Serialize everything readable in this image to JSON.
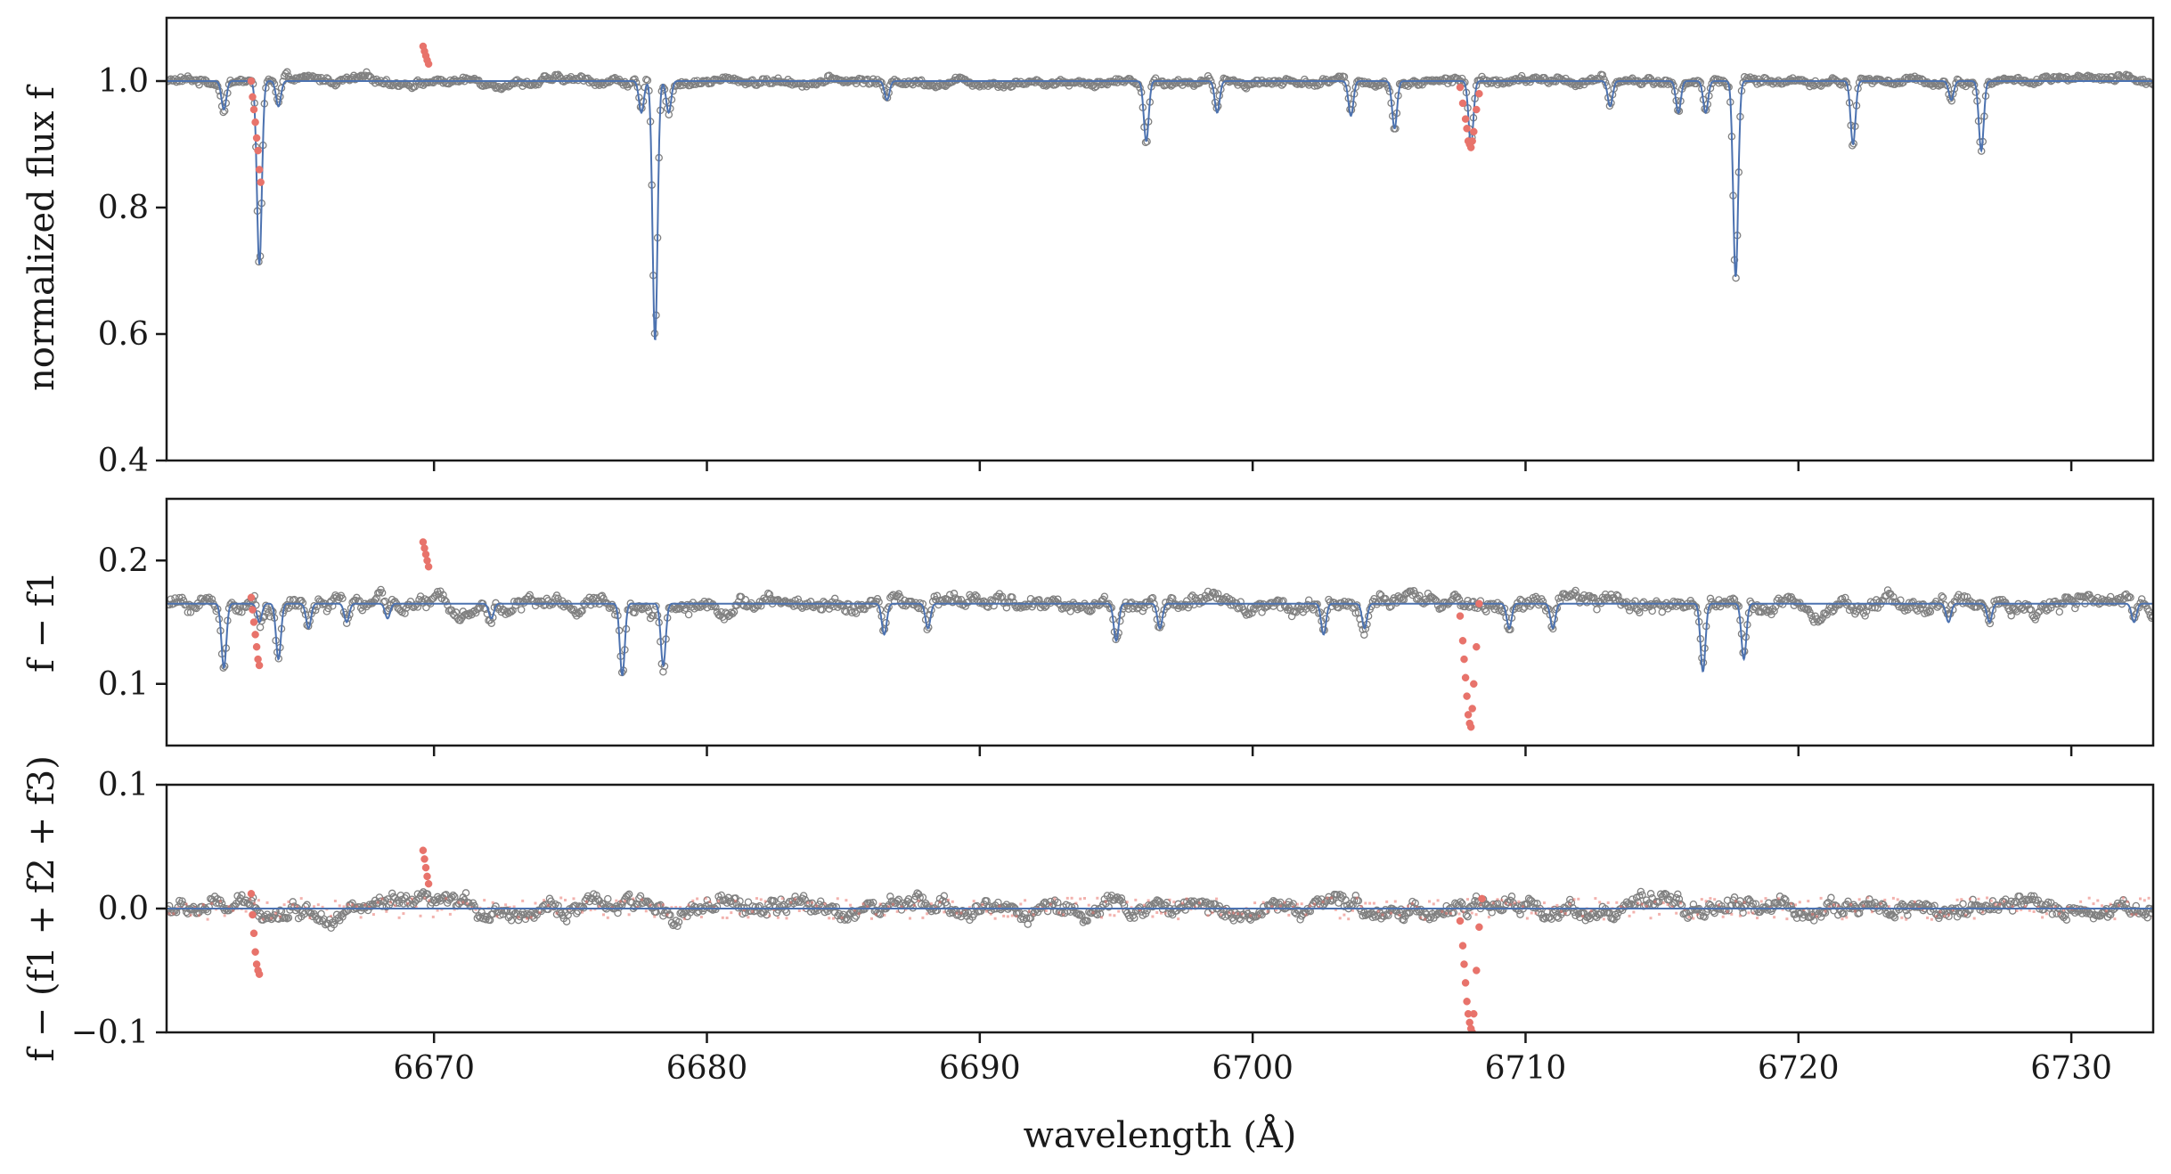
{
  "figure": {
    "xlabel": "wavelength (Å)"
  },
  "colors": {
    "model_line": "#4c72b0",
    "data_points": "#808080",
    "masked_points": "#e8736b",
    "frame": "#1a1a1a"
  },
  "chart_data": [
    {
      "type": "line",
      "panel": "top",
      "ylabel": "normalized flux f",
      "xlim": [
        6660.2,
        6733.0
      ],
      "ylim": [
        0.4,
        1.1
      ],
      "xticks": [
        6670,
        6680,
        6690,
        6700,
        6710,
        6720,
        6730
      ],
      "xtick_labels_shown": false,
      "yticks": [
        0.4,
        0.6,
        0.8,
        1.0
      ],
      "ytick_labels": [
        "0.4",
        "0.6",
        "0.8",
        "1.0"
      ],
      "baseline": 1.0,
      "noise": 0.007,
      "series": [
        {
          "role": "model",
          "style": "line",
          "absorption_lines": [
            {
              "x": 6662.3,
              "depth": 0.045
            },
            {
              "x": 6663.6,
              "depth": 0.29
            },
            {
              "x": 6664.3,
              "depth": 0.04
            },
            {
              "x": 6677.6,
              "depth": 0.05
            },
            {
              "x": 6678.1,
              "depth": 0.41
            },
            {
              "x": 6678.6,
              "depth": 0.05
            },
            {
              "x": 6686.6,
              "depth": 0.03
            },
            {
              "x": 6696.1,
              "depth": 0.095
            },
            {
              "x": 6698.7,
              "depth": 0.05
            },
            {
              "x": 6703.6,
              "depth": 0.055
            },
            {
              "x": 6705.2,
              "depth": 0.075
            },
            {
              "x": 6708.0,
              "depth": 0.1
            },
            {
              "x": 6713.1,
              "depth": 0.04
            },
            {
              "x": 6715.6,
              "depth": 0.05
            },
            {
              "x": 6716.6,
              "depth": 0.05
            },
            {
              "x": 6717.7,
              "depth": 0.31
            },
            {
              "x": 6722.0,
              "depth": 0.1
            },
            {
              "x": 6725.6,
              "depth": 0.03
            },
            {
              "x": 6726.7,
              "depth": 0.11
            }
          ]
        },
        {
          "role": "observed",
          "style": "open-circles"
        },
        {
          "role": "masked",
          "style": "filled-dots",
          "points": [
            [
              6663.3,
              1.0
            ],
            [
              6663.35,
              0.975
            ],
            [
              6663.4,
              0.955
            ],
            [
              6663.45,
              0.935
            ],
            [
              6663.5,
              0.91
            ],
            [
              6663.55,
              0.89
            ],
            [
              6663.6,
              0.86
            ],
            [
              6663.65,
              0.84
            ],
            [
              6669.6,
              1.055
            ],
            [
              6669.65,
              1.047
            ],
            [
              6669.7,
              1.04
            ],
            [
              6669.75,
              1.033
            ],
            [
              6669.8,
              1.027
            ],
            [
              6707.6,
              0.99
            ],
            [
              6707.7,
              0.965
            ],
            [
              6707.8,
              0.94
            ],
            [
              6707.85,
              0.925
            ],
            [
              6707.9,
              0.905
            ],
            [
              6707.95,
              0.9
            ],
            [
              6708.0,
              0.895
            ],
            [
              6708.05,
              0.905
            ],
            [
              6708.1,
              0.92
            ],
            [
              6708.2,
              0.955
            ],
            [
              6708.3,
              0.98
            ]
          ]
        }
      ]
    },
    {
      "type": "line",
      "panel": "middle",
      "ylabel": "f − f1",
      "xlim": [
        6660.2,
        6733.0
      ],
      "ylim": [
        0.05,
        0.25
      ],
      "xticks": [
        6670,
        6680,
        6690,
        6700,
        6710,
        6720,
        6730
      ],
      "xtick_labels_shown": false,
      "yticks": [
        0.1,
        0.2
      ],
      "ytick_labels": [
        "0.1",
        "0.2"
      ],
      "baseline": 0.165,
      "noise": 0.007,
      "series": [
        {
          "role": "model",
          "style": "line",
          "absorption_lines": [
            {
              "x": 6662.3,
              "depth": 0.052
            },
            {
              "x": 6663.6,
              "depth": 0.015
            },
            {
              "x": 6664.3,
              "depth": 0.045
            },
            {
              "x": 6665.4,
              "depth": 0.02
            },
            {
              "x": 6666.8,
              "depth": 0.015
            },
            {
              "x": 6668.3,
              "depth": 0.012
            },
            {
              "x": 6672.1,
              "depth": 0.012
            },
            {
              "x": 6676.9,
              "depth": 0.058
            },
            {
              "x": 6678.4,
              "depth": 0.05
            },
            {
              "x": 6686.5,
              "depth": 0.025
            },
            {
              "x": 6688.1,
              "depth": 0.02
            },
            {
              "x": 6695.0,
              "depth": 0.03
            },
            {
              "x": 6696.6,
              "depth": 0.02
            },
            {
              "x": 6702.6,
              "depth": 0.025
            },
            {
              "x": 6704.1,
              "depth": 0.02
            },
            {
              "x": 6709.4,
              "depth": 0.02
            },
            {
              "x": 6711.0,
              "depth": 0.02
            },
            {
              "x": 6716.5,
              "depth": 0.055
            },
            {
              "x": 6718.0,
              "depth": 0.045
            },
            {
              "x": 6725.5,
              "depth": 0.015
            },
            {
              "x": 6727.0,
              "depth": 0.015
            },
            {
              "x": 6732.3,
              "depth": 0.015
            }
          ]
        },
        {
          "role": "observed",
          "style": "open-circles"
        },
        {
          "role": "masked",
          "style": "filled-dots",
          "points": [
            [
              6663.3,
              0.17
            ],
            [
              6663.35,
              0.16
            ],
            [
              6663.4,
              0.15
            ],
            [
              6663.45,
              0.14
            ],
            [
              6663.5,
              0.13
            ],
            [
              6663.55,
              0.12
            ],
            [
              6663.6,
              0.115
            ],
            [
              6669.6,
              0.215
            ],
            [
              6669.65,
              0.21
            ],
            [
              6669.7,
              0.205
            ],
            [
              6669.75,
              0.2
            ],
            [
              6669.8,
              0.195
            ],
            [
              6707.6,
              0.155
            ],
            [
              6707.7,
              0.135
            ],
            [
              6707.75,
              0.12
            ],
            [
              6707.8,
              0.105
            ],
            [
              6707.85,
              0.09
            ],
            [
              6707.9,
              0.075
            ],
            [
              6707.95,
              0.068
            ],
            [
              6708.0,
              0.065
            ],
            [
              6708.05,
              0.08
            ],
            [
              6708.1,
              0.1
            ],
            [
              6708.2,
              0.13
            ],
            [
              6708.3,
              0.165
            ]
          ]
        }
      ]
    },
    {
      "type": "line",
      "panel": "bottom",
      "ylabel": "f − (f1 + f2 + f3)",
      "xlim": [
        6660.2,
        6733.0
      ],
      "ylim": [
        -0.1,
        0.1
      ],
      "xticks": [
        6670,
        6680,
        6690,
        6700,
        6710,
        6720,
        6730
      ],
      "xtick_labels": [
        "6670",
        "6680",
        "6690",
        "6700",
        "6710",
        "6720",
        "6730"
      ],
      "yticks": [
        -0.1,
        0.0,
        0.1
      ],
      "ytick_labels": [
        "−0.1",
        "0.0",
        "0.1"
      ],
      "baseline": 0.0,
      "noise": 0.008,
      "series": [
        {
          "role": "model",
          "style": "line",
          "absorption_lines": []
        },
        {
          "role": "observed",
          "style": "open-circles"
        },
        {
          "role": "masked",
          "style": "filled-dots",
          "points": [
            [
              6663.3,
              0.012
            ],
            [
              6663.35,
              -0.005
            ],
            [
              6663.4,
              -0.02
            ],
            [
              6663.45,
              -0.035
            ],
            [
              6663.5,
              -0.045
            ],
            [
              6663.55,
              -0.05
            ],
            [
              6663.6,
              -0.053
            ],
            [
              6669.6,
              0.047
            ],
            [
              6669.65,
              0.04
            ],
            [
              6669.7,
              0.033
            ],
            [
              6669.75,
              0.026
            ],
            [
              6669.8,
              0.02
            ],
            [
              6707.6,
              -0.01
            ],
            [
              6707.7,
              -0.03
            ],
            [
              6707.75,
              -0.045
            ],
            [
              6707.8,
              -0.06
            ],
            [
              6707.85,
              -0.075
            ],
            [
              6707.9,
              -0.085
            ],
            [
              6707.95,
              -0.092
            ],
            [
              6708.0,
              -0.097
            ],
            [
              6708.05,
              -0.1
            ],
            [
              6708.1,
              -0.085
            ],
            [
              6708.2,
              -0.05
            ],
            [
              6708.3,
              -0.015
            ],
            [
              6708.4,
              0.008
            ]
          ]
        }
      ]
    }
  ]
}
